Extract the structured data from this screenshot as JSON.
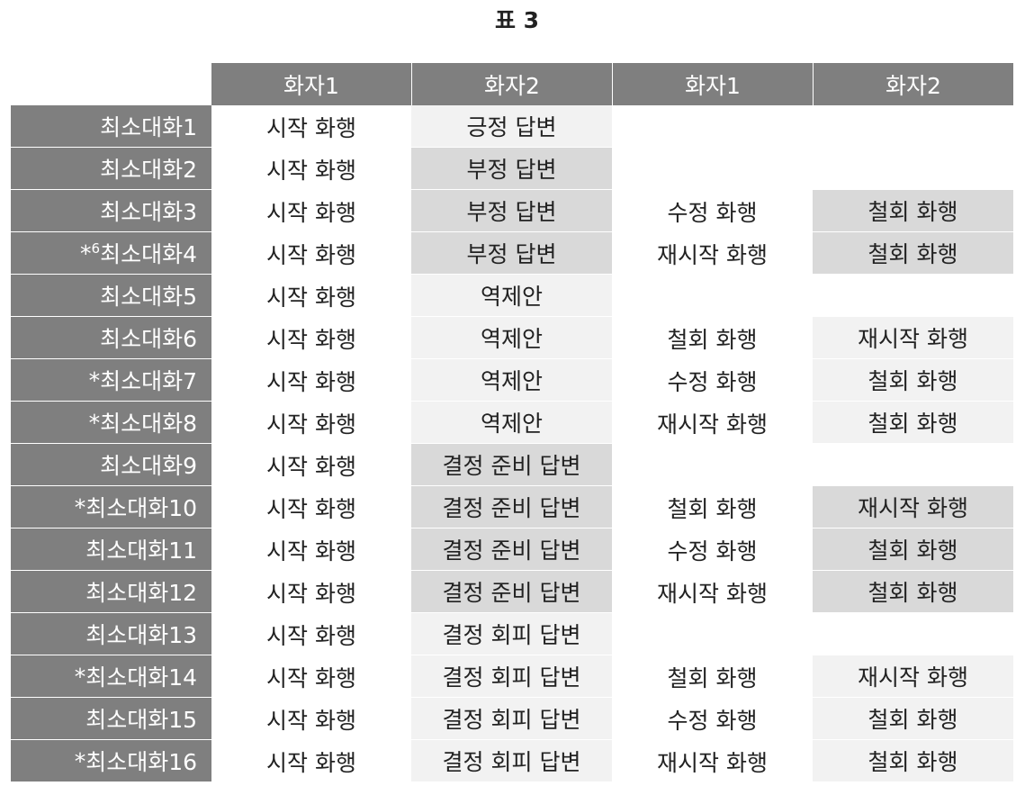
{
  "title": "표 3",
  "headers": [
    "화자1",
    "화자2",
    "화자1",
    "화자2"
  ],
  "rows": [
    {
      "prefix": "",
      "sup": "",
      "label": "최소대화1",
      "c1": "시작 화행",
      "c2": "긍정 답변",
      "c2_shade": "light",
      "c3": "",
      "c4": "",
      "c4_shade": "blank"
    },
    {
      "prefix": "",
      "sup": "",
      "label": "최소대화2",
      "c1": "시작 화행",
      "c2": "부정 답변",
      "c2_shade": "dark",
      "c3": "",
      "c4": "",
      "c4_shade": "blank"
    },
    {
      "prefix": "",
      "sup": "",
      "label": "최소대화3",
      "c1": "시작 화행",
      "c2": "부정 답변",
      "c2_shade": "dark",
      "c3": "수정 화행",
      "c4": "철회 화행",
      "c4_shade": "dark"
    },
    {
      "prefix": "*",
      "sup": "6",
      "label": "최소대화4",
      "c1": "시작 화행",
      "c2": "부정 답변",
      "c2_shade": "dark",
      "c3": "재시작 화행",
      "c4": "철회 화행",
      "c4_shade": "dark"
    },
    {
      "prefix": "",
      "sup": "",
      "label": "최소대화5",
      "c1": "시작 화행",
      "c2": "역제안",
      "c2_shade": "light",
      "c3": "",
      "c4": "",
      "c4_shade": "blank"
    },
    {
      "prefix": "",
      "sup": "",
      "label": "최소대화6",
      "c1": "시작 화행",
      "c2": "역제안",
      "c2_shade": "light",
      "c3": "철회 화행",
      "c4": "재시작 화행",
      "c4_shade": "light"
    },
    {
      "prefix": "*",
      "sup": "",
      "label": "최소대화7",
      "c1": "시작 화행",
      "c2": "역제안",
      "c2_shade": "light",
      "c3": "수정 화행",
      "c4": "철회 화행",
      "c4_shade": "light"
    },
    {
      "prefix": "*",
      "sup": "",
      "label": "최소대화8",
      "c1": "시작 화행",
      "c2": "역제안",
      "c2_shade": "light",
      "c3": "재시작 화행",
      "c4": "철회 화행",
      "c4_shade": "light"
    },
    {
      "prefix": "",
      "sup": "",
      "label": "최소대화9",
      "c1": "시작 화행",
      "c2": "결정 준비 답변",
      "c2_shade": "dark",
      "c3": "",
      "c4": "",
      "c4_shade": "blank"
    },
    {
      "prefix": "*",
      "sup": "",
      "label": "최소대화10",
      "c1": "시작 화행",
      "c2": "결정 준비 답변",
      "c2_shade": "dark",
      "c3": "철회 화행",
      "c4": "재시작 화행",
      "c4_shade": "dark"
    },
    {
      "prefix": "",
      "sup": "",
      "label": "최소대화11",
      "c1": "시작 화행",
      "c2": "결정 준비 답변",
      "c2_shade": "dark",
      "c3": "수정 화행",
      "c4": "철회 화행",
      "c4_shade": "dark"
    },
    {
      "prefix": "",
      "sup": "",
      "label": "최소대화12",
      "c1": "시작 화행",
      "c2": "결정 준비 답변",
      "c2_shade": "dark",
      "c3": "재시작 화행",
      "c4": "철회 화행",
      "c4_shade": "dark"
    },
    {
      "prefix": "",
      "sup": "",
      "label": "최소대화13",
      "c1": "시작 화행",
      "c2": "결정 회피 답변",
      "c2_shade": "light",
      "c3": "",
      "c4": "",
      "c4_shade": "blank"
    },
    {
      "prefix": "*",
      "sup": "",
      "label": "최소대화14",
      "c1": "시작 화행",
      "c2": "결정 회피 답변",
      "c2_shade": "light",
      "c3": "철회 화행",
      "c4": "재시작 화행",
      "c4_shade": "light"
    },
    {
      "prefix": "",
      "sup": "",
      "label": "최소대화15",
      "c1": "시작 화행",
      "c2": "결정 회피 답변",
      "c2_shade": "light",
      "c3": "수정 화행",
      "c4": "철회 화행",
      "c4_shade": "light"
    },
    {
      "prefix": "*",
      "sup": "",
      "label": "최소대화16",
      "c1": "시작 화행",
      "c2": "결정 회피 답변",
      "c2_shade": "light",
      "c3": "재시작 화행",
      "c4": "철회 화행",
      "c4_shade": "light"
    }
  ]
}
